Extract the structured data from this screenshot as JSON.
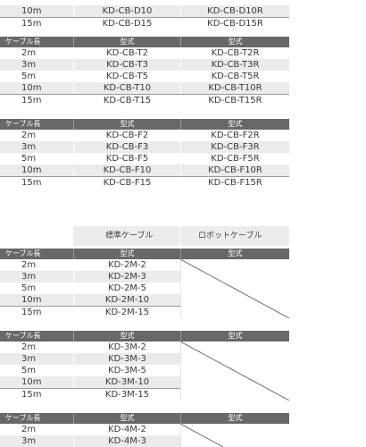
{
  "header_common": {
    "cable_length": "ケーブル長",
    "model": "型式"
  },
  "types": {
    "standard": "標準ケーブル",
    "robot": "ロボットケーブル"
  },
  "d_partial": [
    {
      "len": "10m",
      "std": "KD-CB-D10",
      "robot": "KD-CB-D10R"
    },
    {
      "len": "15m",
      "std": "KD-CB-D15",
      "robot": "KD-CB-D15R"
    }
  ],
  "t_block": [
    {
      "len": "2m",
      "std": "KD-CB-T2",
      "robot": "KD-CB-T2R"
    },
    {
      "len": "3m",
      "std": "KD-CB-T3",
      "robot": "KD-CB-T3R"
    },
    {
      "len": "5m",
      "std": "KD-CB-T5",
      "robot": "KD-CB-T5R"
    },
    {
      "len": "10m",
      "std": "KD-CB-T10",
      "robot": "KD-CB-T10R"
    },
    {
      "len": "15m",
      "std": "KD-CB-T15",
      "robot": "KD-CB-T15R"
    }
  ],
  "f_block": [
    {
      "len": "2m",
      "std": "KD-CB-F2",
      "robot": "KD-CB-F2R"
    },
    {
      "len": "3m",
      "std": "KD-CB-F3",
      "robot": "KD-CB-F3R"
    },
    {
      "len": "5m",
      "std": "KD-CB-F5",
      "robot": "KD-CB-F5R"
    },
    {
      "len": "10m",
      "std": "KD-CB-F10",
      "robot": "KD-CB-F10R"
    },
    {
      "len": "15m",
      "std": "KD-CB-F15",
      "robot": "KD-CB-F15R"
    }
  ],
  "m2_block": [
    {
      "len": "2m",
      "std": "KD-2M-2"
    },
    {
      "len": "3m",
      "std": "KD-2M-3"
    },
    {
      "len": "5m",
      "std": "KD-2M-5"
    },
    {
      "len": "10m",
      "std": "KD-2M-10"
    },
    {
      "len": "15m",
      "std": "KD-2M-15"
    }
  ],
  "m3_block": [
    {
      "len": "2m",
      "std": "KD-3M-2"
    },
    {
      "len": "3m",
      "std": "KD-3M-3"
    },
    {
      "len": "5m",
      "std": "KD-3M-5"
    },
    {
      "len": "10m",
      "std": "KD-3M-10"
    },
    {
      "len": "15m",
      "std": "KD-3M-15"
    }
  ],
  "m4_block": [
    {
      "len": "2m",
      "std": "KD-4M-2"
    },
    {
      "len": "3m",
      "std": "KD-4M-3"
    }
  ],
  "colors": {
    "header_bg": "#686868",
    "alt_row": "#ebebeb",
    "type_header_bg": "#ececec"
  }
}
